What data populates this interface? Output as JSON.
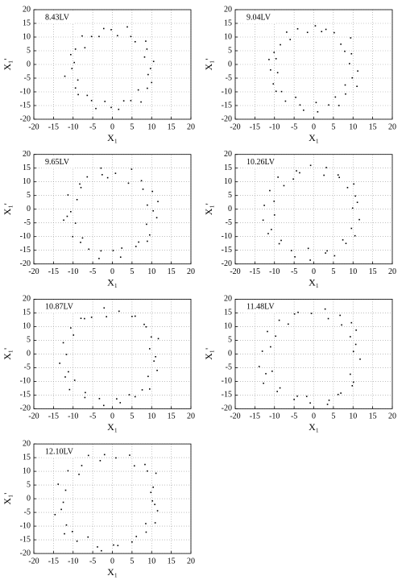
{
  "chart_data": [
    {
      "type": "scatter",
      "title": "8.43LV",
      "x_label": "X₁",
      "y_label": "X₁'",
      "color": "#000000",
      "grid": true,
      "xlim": [
        -20,
        20
      ],
      "ylim": [
        -20,
        20
      ],
      "xticks": [
        -20,
        -15,
        -10,
        -5,
        0,
        5,
        10,
        15,
        20
      ],
      "yticks": [
        -20,
        -15,
        -10,
        -5,
        0,
        5,
        10,
        15,
        20
      ],
      "x": [
        9.7,
        10.5,
        8.2,
        8.8,
        8.5,
        5.8,
        4.7,
        3.8,
        1.3,
        -0.3,
        -2.2,
        -3.4,
        -5.3,
        -7.7,
        -7.0,
        -9.4,
        -10.6,
        -9.7,
        -10.3,
        -12.1,
        -8.8,
        -9.4,
        -8.7,
        -6.4,
        -5.3,
        -4.2,
        -1.9,
        -0.3,
        1.6,
        2.9,
        4.7,
        7.3,
        6.6,
        8.9,
        10.0,
        9.1
      ],
      "values": [
        -1.5,
        1.1,
        2.7,
        5.6,
        8.5,
        8.3,
        10.2,
        13.7,
        10.5,
        12.7,
        13.1,
        10.2,
        10.2,
        10.4,
        6.1,
        5.6,
        3.6,
        0.7,
        -1.5,
        -4.3,
        -5.7,
        -8.6,
        -11.0,
        -11.3,
        -13.2,
        -16.1,
        -13.5,
        -15.7,
        -16.4,
        -13.3,
        -13.2,
        -13.7,
        -9.3,
        -8.7,
        -6.6,
        -3.7
      ]
    },
    {
      "type": "scatter",
      "title": "9.04LV",
      "x_label": "X₁",
      "y_label": "X₁'",
      "color": "#000000",
      "grid": true,
      "xlim": [
        -20,
        20
      ],
      "ylim": [
        -20,
        20
      ],
      "xticks": [
        -20,
        -15,
        -10,
        -5,
        0,
        5,
        10,
        15,
        20
      ],
      "yticks": [
        -20,
        -15,
        -10,
        -5,
        0,
        5,
        10,
        15,
        20
      ],
      "x": [
        11.2,
        9.1,
        9.6,
        7.9,
        9.4,
        6.9,
        5.2,
        3.1,
        2.0,
        0.4,
        -1.6,
        -4.1,
        -6.0,
        -6.9,
        -8.5,
        -10.1,
        -9.6,
        -11.4,
        -9.2,
        -11.0,
        -10.3,
        -8.2,
        -9.6,
        -7.2,
        -4.6,
        -3.5,
        -2.6,
        0.6,
        1.0,
        3.8,
        5.5,
        6.4,
        8.1,
        8.0,
        11.0,
        9.8
      ],
      "values": [
        -2.4,
        0.3,
        3.9,
        4.8,
        9.7,
        7.4,
        11.6,
        12.8,
        12.0,
        14.1,
        11.7,
        13.0,
        9.1,
        11.8,
        7.2,
        4.4,
        2.1,
        1.8,
        -3.0,
        -2.0,
        -7.1,
        -9.9,
        -9.8,
        -13.4,
        -12.0,
        -14.8,
        -16.7,
        -13.9,
        -17.3,
        -14.8,
        -11.9,
        -15.0,
        -10.8,
        -7.5,
        -8.0,
        -4.9
      ]
    },
    {
      "type": "scatter",
      "title": "9.65LV",
      "x_label": "X₁",
      "y_label": "X₁'",
      "color": "#000000",
      "grid": true,
      "xlim": [
        -20,
        20
      ],
      "ylim": [
        -20,
        20
      ],
      "xticks": [
        -20,
        -15,
        -10,
        -5,
        0,
        5,
        10,
        15,
        20
      ],
      "yticks": [
        -20,
        -15,
        -10,
        -5,
        0,
        5,
        10,
        15,
        20
      ],
      "x": [
        10.4,
        11.6,
        8.9,
        10.2,
        7.8,
        7.4,
        4.1,
        4.9,
        0.8,
        -1.2,
        -2.9,
        -2.6,
        -6.4,
        -8.3,
        -8.0,
        -9.0,
        -11.3,
        -10.6,
        -11.5,
        -9.4,
        -12.4,
        -10.1,
        -8.1,
        -7.6,
        -6.0,
        -2.9,
        -3.4,
        0.2,
        2.4,
        2.1,
        6.0,
        6.7,
        8.9,
        9.5,
        8.7,
        11.3
      ],
      "values": [
        -0.6,
        2.8,
        1.5,
        6.5,
        7.3,
        10.4,
        9.5,
        14.6,
        13.1,
        11.5,
        15.0,
        12.6,
        11.8,
        9.2,
        7.9,
        3.5,
        5.2,
        -0.9,
        -2.6,
        -5.1,
        -4.0,
        -10.0,
        -12.1,
        -10.5,
        -14.6,
        -15.2,
        -18.0,
        -15.1,
        -14.2,
        -17.5,
        -13.6,
        -12.0,
        -11.7,
        -9.4,
        -5.5,
        -3.1
      ]
    },
    {
      "type": "scatter",
      "title": "10.26LV",
      "x_label": "X₁",
      "y_label": "X₁'",
      "color": "#000000",
      "grid": true,
      "xlim": [
        -20,
        20
      ],
      "ylim": [
        -20,
        20
      ],
      "xticks": [
        -20,
        -15,
        -10,
        -5,
        0,
        5,
        10,
        15,
        20
      ],
      "yticks": [
        -20,
        -15,
        -10,
        -5,
        0,
        5,
        10,
        15,
        20
      ],
      "x": [
        9.9,
        11.1,
        10.6,
        8.6,
        10.2,
        6.5,
        6.2,
        3.2,
        2.6,
        -0.8,
        -3.6,
        -4.4,
        -5.2,
        -9.1,
        -7.6,
        -11.2,
        -10.1,
        -12.6,
        -10.0,
        -12.9,
        -10.8,
        -11.6,
        -8.8,
        -8.3,
        -5.7,
        -4.8,
        -1.4,
        -0.9,
        3.0,
        3.4,
        5.3,
        8.2,
        7.4,
        10.5,
        9.6,
        11.6
      ],
      "values": [
        0.4,
        2.5,
        4.8,
        7.9,
        9.2,
        11.6,
        12.5,
        15.2,
        12.4,
        16.0,
        13.3,
        14.0,
        11.0,
        11.7,
        8.6,
        6.8,
        2.9,
        1.4,
        -2.1,
        -4.0,
        -7.4,
        -8.9,
        -12.6,
        -11.4,
        -15.1,
        -17.4,
        -14.3,
        -18.6,
        -16.0,
        -15.2,
        -17.0,
        -12.5,
        -11.2,
        -9.7,
        -7.0,
        -3.8
      ]
    },
    {
      "type": "scatter",
      "title": "10.87LV",
      "x_label": "X₁",
      "y_label": "X₁'",
      "color": "#000000",
      "grid": true,
      "xlim": [
        -20,
        20
      ],
      "ylim": [
        -20,
        20
      ],
      "xticks": [
        -20,
        -15,
        -10,
        -5,
        0,
        5,
        10,
        15,
        20
      ],
      "yticks": [
        -20,
        -15,
        -10,
        -5,
        0,
        5,
        10,
        15,
        20
      ],
      "x": [
        11.0,
        9.5,
        11.7,
        9.9,
        8.1,
        8.6,
        5.0,
        5.8,
        1.7,
        -1.5,
        -2.1,
        -5.3,
        -7.1,
        -8.0,
        -10.6,
        -9.9,
        -12.5,
        -11.7,
        -13.4,
        -11.2,
        -12.0,
        -9.6,
        -10.9,
        -6.9,
        -7.0,
        -3.3,
        -2.2,
        1.1,
        2.0,
        4.3,
        5.8,
        7.6,
        9.5,
        9.1,
        11.4,
        10.6
      ],
      "values": [
        -1.0,
        1.9,
        5.6,
        6.2,
        10.8,
        9.9,
        13.7,
        13.8,
        15.6,
        13.6,
        16.8,
        13.4,
        12.9,
        13.0,
        9.5,
        6.9,
        4.1,
        -0.2,
        -3.4,
        -6.5,
        -8.4,
        -9.6,
        -13.0,
        -14.1,
        -15.9,
        -16.3,
        -18.8,
        -16.4,
        -17.8,
        -14.9,
        -15.6,
        -13.1,
        -12.8,
        -8.2,
        -6.0,
        -2.6
      ]
    },
    {
      "type": "scatter",
      "title": "11.48LV",
      "x_label": "X₁",
      "y_label": "X₁'",
      "color": "#000000",
      "grid": true,
      "xlim": [
        -20,
        20
      ],
      "ylim": [
        -20,
        20
      ],
      "xticks": [
        -20,
        -15,
        -10,
        -5,
        0,
        5,
        10,
        15,
        20
      ],
      "yticks": [
        -20,
        -15,
        -10,
        -5,
        0,
        5,
        10,
        15,
        20
      ],
      "x": [
        10.1,
        10.7,
        9.3,
        10.8,
        9.6,
        7.1,
        6.7,
        3.7,
        2.9,
        -0.6,
        -4.0,
        -4.9,
        -6.5,
        -8.8,
        -9.7,
        -11.8,
        -11.0,
        -13.1,
        -13.9,
        -12.2,
        -10.6,
        -12.8,
        -9.3,
        -8.6,
        -5.0,
        -4.2,
        -0.9,
        -1.8,
        3.5,
        3.9,
        6.9,
        6.2,
        9.8,
        10.1,
        9.3,
        11.8
      ],
      "values": [
        0.9,
        3.5,
        6.3,
        8.7,
        11.4,
        10.6,
        14.1,
        12.9,
        16.4,
        14.8,
        15.2,
        14.6,
        10.9,
        12.3,
        6.5,
        8.2,
        2.6,
        1.0,
        -4.6,
        -7.2,
        -6.3,
        -10.7,
        -13.7,
        -12.4,
        -16.6,
        -15.4,
        -17.9,
        -15.5,
        -18.4,
        -16.9,
        -14.3,
        -14.8,
        -11.6,
        -10.3,
        -7.4,
        -1.9
      ]
    },
    {
      "type": "scatter",
      "title": "12.10LV",
      "x_label": "X₁",
      "y_label": "X₁'",
      "color": "#000000",
      "grid": true,
      "xlim": [
        -20,
        20
      ],
      "ylim": [
        -20,
        20
      ],
      "xticks": [
        -20,
        -15,
        -10,
        -5,
        0,
        5,
        10,
        15,
        20
      ],
      "yticks": [
        -20,
        -15,
        -10,
        -5,
        0,
        5,
        10,
        15,
        20
      ],
      "x": [
        10.8,
        9.8,
        10.4,
        11.1,
        8.9,
        8.3,
        5.6,
        4.4,
        0.9,
        -2.0,
        -3.1,
        -6.1,
        -7.8,
        -8.5,
        -11.3,
        -11.9,
        -13.8,
        -12.5,
        -14.6,
        -13.0,
        -11.7,
        -12.2,
        -10.2,
        -9.0,
        -6.2,
        -3.8,
        -2.8,
        0.3,
        1.4,
        5.0,
        6.1,
        8.6,
        8.5,
        10.9,
        11.5,
        10.2
      ],
      "values": [
        -2.1,
        2.3,
        4.2,
        9.3,
        10.1,
        12.5,
        12.0,
        15.9,
        14.9,
        16.1,
        13.9,
        15.8,
        12.1,
        8.9,
        10.2,
        3.1,
        5.3,
        -1.3,
        -5.8,
        -3.9,
        -9.6,
        -12.8,
        -12.0,
        -15.5,
        -14.0,
        -17.6,
        -19.0,
        -16.9,
        -17.1,
        -15.8,
        -13.8,
        -12.2,
        -9.1,
        -8.8,
        -4.4,
        -0.8
      ]
    }
  ]
}
